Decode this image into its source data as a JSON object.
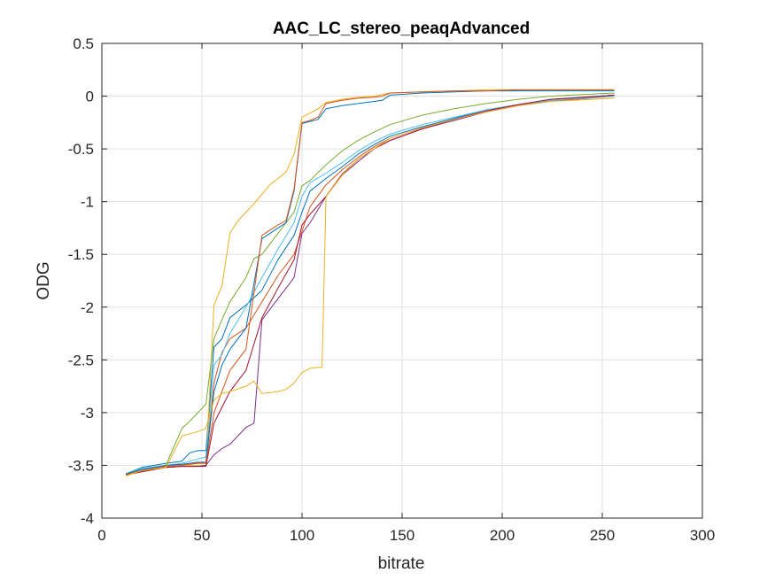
{
  "chart_data": {
    "type": "line",
    "title": "AAC_LC_stereo_peaqAdvanced",
    "xlabel": "bitrate",
    "ylabel": "ODG",
    "xlim": [
      0,
      300
    ],
    "ylim": [
      -4,
      0.5
    ],
    "xticks": [
      0,
      50,
      100,
      150,
      200,
      250,
      300
    ],
    "yticks": [
      -4,
      -3.5,
      -3,
      -2.5,
      -2,
      -1.5,
      -1,
      -0.5,
      0,
      0.5
    ],
    "xtick_labels": [
      "0",
      "50",
      "100",
      "150",
      "200",
      "250",
      "300"
    ],
    "ytick_labels": [
      "-4",
      "-3.5",
      "-3",
      "-2.5",
      "-2",
      "-1.5",
      "-1",
      "-0.5",
      "0",
      "0.5"
    ],
    "grid": true,
    "series": [
      {
        "color": "#0072BD",
        "x": [
          12,
          20,
          32,
          40,
          44,
          48,
          52,
          56,
          60,
          64,
          72,
          80,
          88,
          96,
          100,
          104,
          112,
          120,
          128,
          136,
          144,
          160,
          176,
          192,
          208,
          224,
          256
        ],
        "y": [
          -3.58,
          -3.52,
          -3.48,
          -3.46,
          -3.38,
          -3.36,
          -3.36,
          -2.38,
          -2.3,
          -2.1,
          -1.98,
          -1.84,
          -1.55,
          -1.32,
          -1.1,
          -0.9,
          -0.78,
          -0.67,
          -0.55,
          -0.46,
          -0.38,
          -0.29,
          -0.21,
          -0.13,
          -0.08,
          -0.04,
          0.01
        ]
      },
      {
        "color": "#D95319",
        "x": [
          12,
          20,
          32,
          40,
          44,
          48,
          52,
          56,
          60,
          64,
          72,
          80,
          88,
          96,
          100,
          104,
          112,
          120,
          128,
          136,
          144,
          160,
          176,
          192,
          208,
          224,
          256
        ],
        "y": [
          -3.59,
          -3.55,
          -3.5,
          -3.49,
          -3.48,
          -3.48,
          -3.47,
          -2.72,
          -2.43,
          -2.3,
          -2.2,
          -1.95,
          -1.7,
          -1.5,
          -1.28,
          -1.05,
          -0.84,
          -0.7,
          -0.58,
          -0.48,
          -0.4,
          -0.3,
          -0.22,
          -0.15,
          -0.09,
          -0.05,
          0.0
        ]
      },
      {
        "color": "#EDB120",
        "x": [
          12,
          20,
          32,
          40,
          44,
          48,
          52,
          56,
          60,
          64,
          68,
          72,
          76,
          80,
          84,
          88,
          92,
          96,
          100,
          104,
          108,
          112,
          120,
          128,
          136,
          144,
          160,
          176,
          192,
          208,
          224,
          256
        ],
        "y": [
          -3.58,
          -3.53,
          -3.51,
          -3.5,
          -3.5,
          -3.5,
          -3.5,
          -1.98,
          -1.8,
          -1.3,
          -1.18,
          -1.1,
          -1.02,
          -0.93,
          -0.84,
          -0.78,
          -0.72,
          -0.55,
          -0.2,
          -0.16,
          -0.12,
          -0.06,
          -0.03,
          -0.01,
          0.0,
          0.03,
          0.04,
          0.05,
          0.06,
          0.06,
          0.06,
          0.06
        ]
      },
      {
        "color": "#7E2F8E",
        "x": [
          12,
          20,
          32,
          40,
          44,
          48,
          52,
          56,
          60,
          64,
          72,
          76,
          80,
          88,
          96,
          100,
          104,
          112,
          120,
          128,
          136,
          144,
          160,
          176,
          192,
          208,
          224,
          256
        ],
        "y": [
          -3.59,
          -3.56,
          -3.52,
          -3.51,
          -3.51,
          -3.51,
          -3.5,
          -3.4,
          -3.34,
          -3.3,
          -3.14,
          -3.1,
          -2.12,
          -1.92,
          -1.72,
          -1.3,
          -1.2,
          -0.95,
          -0.75,
          -0.62,
          -0.5,
          -0.42,
          -0.31,
          -0.23,
          -0.15,
          -0.09,
          -0.04,
          0.01
        ]
      },
      {
        "color": "#77AC30",
        "x": [
          12,
          20,
          32,
          40,
          44,
          48,
          52,
          56,
          60,
          64,
          72,
          76,
          80,
          88,
          96,
          100,
          104,
          112,
          120,
          128,
          136,
          144,
          160,
          176,
          192,
          208,
          224,
          256
        ],
        "y": [
          -3.58,
          -3.54,
          -3.5,
          -3.15,
          -3.08,
          -3.0,
          -2.92,
          -2.3,
          -2.12,
          -1.95,
          -1.72,
          -1.54,
          -1.5,
          -1.3,
          -1.1,
          -0.85,
          -0.8,
          -0.65,
          -0.52,
          -0.42,
          -0.34,
          -0.27,
          -0.18,
          -0.12,
          -0.07,
          -0.03,
          0.0,
          0.03
        ]
      },
      {
        "color": "#4DBEEE",
        "x": [
          12,
          20,
          32,
          40,
          44,
          48,
          52,
          56,
          60,
          64,
          72,
          80,
          88,
          96,
          100,
          104,
          112,
          120,
          128,
          136,
          144,
          160,
          176,
          192,
          208,
          224,
          256
        ],
        "y": [
          -3.58,
          -3.53,
          -3.5,
          -3.48,
          -3.46,
          -3.44,
          -3.42,
          -2.55,
          -2.45,
          -2.25,
          -2.0,
          -1.72,
          -1.45,
          -1.2,
          -0.95,
          -0.82,
          -0.73,
          -0.63,
          -0.52,
          -0.43,
          -0.36,
          -0.27,
          -0.2,
          -0.13,
          -0.08,
          -0.04,
          0.0
        ]
      },
      {
        "color": "#A2142F",
        "x": [
          12,
          20,
          32,
          40,
          44,
          48,
          52,
          56,
          60,
          64,
          72,
          80,
          88,
          96,
          100,
          104,
          112,
          120,
          128,
          136,
          144,
          160,
          176,
          192,
          208,
          224,
          256
        ],
        "y": [
          -3.59,
          -3.56,
          -3.52,
          -3.51,
          -3.51,
          -3.51,
          -3.51,
          -3.1,
          -2.95,
          -2.8,
          -2.6,
          -2.1,
          -1.82,
          -1.55,
          -1.22,
          -1.12,
          -0.95,
          -0.74,
          -0.6,
          -0.5,
          -0.42,
          -0.31,
          -0.22,
          -0.14,
          -0.08,
          -0.03,
          0.01
        ]
      },
      {
        "color": "#0072BD",
        "x": [
          12,
          20,
          32,
          40,
          44,
          48,
          52,
          56,
          60,
          64,
          72,
          80,
          88,
          92,
          96,
          100,
          104,
          108,
          112,
          120,
          128,
          136,
          140,
          144,
          160,
          176,
          192,
          208,
          224,
          256
        ],
        "y": [
          -3.58,
          -3.54,
          -3.5,
          -3.49,
          -3.48,
          -3.47,
          -3.47,
          -2.8,
          -2.55,
          -2.4,
          -2.2,
          -1.35,
          -1.25,
          -1.2,
          -0.9,
          -0.26,
          -0.24,
          -0.22,
          -0.12,
          -0.09,
          -0.07,
          -0.05,
          -0.04,
          0.01,
          0.03,
          0.04,
          0.05,
          0.05,
          0.05,
          0.05
        ]
      },
      {
        "color": "#D95319",
        "x": [
          12,
          20,
          32,
          40,
          44,
          48,
          52,
          56,
          60,
          64,
          72,
          80,
          88,
          92,
          96,
          100,
          104,
          108,
          112,
          120,
          128,
          136,
          140,
          144,
          160,
          176,
          192,
          208,
          224,
          256
        ],
        "y": [
          -3.59,
          -3.55,
          -3.51,
          -3.5,
          -3.49,
          -3.48,
          -3.48,
          -3.0,
          -2.8,
          -2.6,
          -2.4,
          -1.32,
          -1.22,
          -1.18,
          -0.88,
          -0.25,
          -0.23,
          -0.2,
          -0.07,
          -0.04,
          -0.02,
          -0.01,
          0.0,
          0.03,
          0.04,
          0.05,
          0.05,
          0.06,
          0.06,
          0.06
        ]
      },
      {
        "color": "#EDB120",
        "x": [
          12,
          20,
          32,
          40,
          44,
          48,
          52,
          56,
          60,
          64,
          72,
          76,
          80,
          88,
          92,
          96,
          100,
          104,
          108,
          110,
          112,
          120,
          128,
          136,
          144,
          160,
          176,
          192,
          208,
          224,
          256
        ],
        "y": [
          -3.6,
          -3.55,
          -3.52,
          -3.22,
          -3.2,
          -3.18,
          -3.15,
          -2.88,
          -2.82,
          -2.8,
          -2.75,
          -2.7,
          -2.82,
          -2.8,
          -2.78,
          -2.72,
          -2.62,
          -2.58,
          -2.57,
          -2.57,
          -0.95,
          -0.75,
          -0.6,
          -0.5,
          -0.4,
          -0.3,
          -0.22,
          -0.15,
          -0.09,
          -0.05,
          -0.02
        ]
      }
    ]
  }
}
